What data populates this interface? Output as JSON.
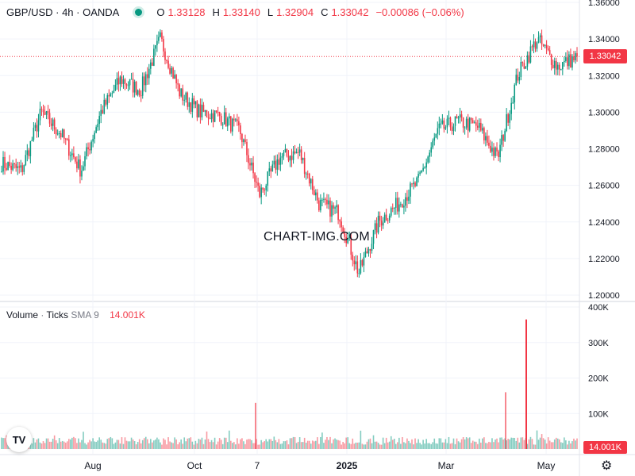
{
  "legend": {
    "symbol": "GBP/USD · 4h · OANDA",
    "open_label": "O",
    "open": "1.33128",
    "high_label": "H",
    "high": "1.33140",
    "low_label": "L",
    "low": "1.32904",
    "close_label": "C",
    "close": "1.33042",
    "change": "−0.00086 (−0.06%)"
  },
  "volume_legend": {
    "name": "Volume",
    "sep": "·",
    "ticks": "Ticks",
    "sma": "SMA 9",
    "value": "14.001K"
  },
  "watermark": "CHART-IMG.COM",
  "last_price_tag": "1.33042",
  "volume_tag": "14.001K",
  "logo": "TV",
  "colors": {
    "up": "#089981",
    "down": "#f23645",
    "grid": "#f0f3fa",
    "axis_text": "#131722"
  },
  "chart_data": [
    {
      "type": "candlestick",
      "title": "GBP/USD · 4h · OANDA",
      "x_tick_labels": [
        "Aug",
        "Oct",
        "7",
        "2025",
        "Mar",
        "May"
      ],
      "y_tick_labels": [
        "1.36000",
        "1.34000",
        "1.32000",
        "1.30000",
        "1.28000",
        "1.26000",
        "1.24000",
        "1.22000",
        "1.20000"
      ],
      "ylim": [
        1.2,
        1.36
      ],
      "last_price": 1.33042,
      "grid": true,
      "close_path": [
        [
          "Jun 2024",
          1.272
        ],
        [
          "Jul 2024",
          1.268
        ],
        [
          "Mid Jul 2024",
          1.3
        ],
        [
          "Late Jul 2024",
          1.288
        ],
        [
          "Early Aug 2024",
          1.268
        ],
        [
          "Mid Aug 2024",
          1.3
        ],
        [
          "Late Aug 2024",
          1.318
        ],
        [
          "Early Sep 2024",
          1.312
        ],
        [
          "Late Sep 2024",
          1.34
        ],
        [
          "Early Oct 2024",
          1.31
        ],
        [
          "Mid Oct 2024",
          1.3
        ],
        [
          "Late Oct 2024",
          1.298
        ],
        [
          "Early Nov 2024",
          1.29
        ],
        [
          "Mid Nov 2024",
          1.255
        ],
        [
          "Late Nov 2024",
          1.275
        ],
        [
          "Early Dec 2024",
          1.278
        ],
        [
          "Late Dec 2024",
          1.25
        ],
        [
          "Early Jan 2025",
          1.245
        ],
        [
          "Mid Jan 2025",
          1.212
        ],
        [
          "Late Jan 2025",
          1.24
        ],
        [
          "Feb 2025",
          1.25
        ],
        [
          "Mid Feb 2025",
          1.262
        ],
        [
          "Early Mar 2025",
          1.29
        ],
        [
          "Mid Mar 2025",
          1.295
        ],
        [
          "Late Mar 2025",
          1.292
        ],
        [
          "Early Apr 2025",
          1.275
        ],
        [
          "Mid Apr 2025",
          1.32
        ],
        [
          "Late Apr 2025",
          1.34
        ],
        [
          "Early May 2025",
          1.325
        ],
        [
          "May 2025",
          1.33
        ]
      ]
    },
    {
      "type": "bar",
      "title": "Volume · Ticks SMA 9",
      "y_tick_labels": [
        "400K",
        "300K",
        "200K",
        "100K"
      ],
      "ylim": [
        0,
        400000
      ],
      "last_value": "14.001K",
      "spikes": [
        {
          "date": "Early Apr 2025",
          "value": 365000
        },
        {
          "date": "Early Apr 2025",
          "value": 160000
        },
        {
          "date": "Mid Nov 2024",
          "value": 130000
        }
      ]
    }
  ]
}
